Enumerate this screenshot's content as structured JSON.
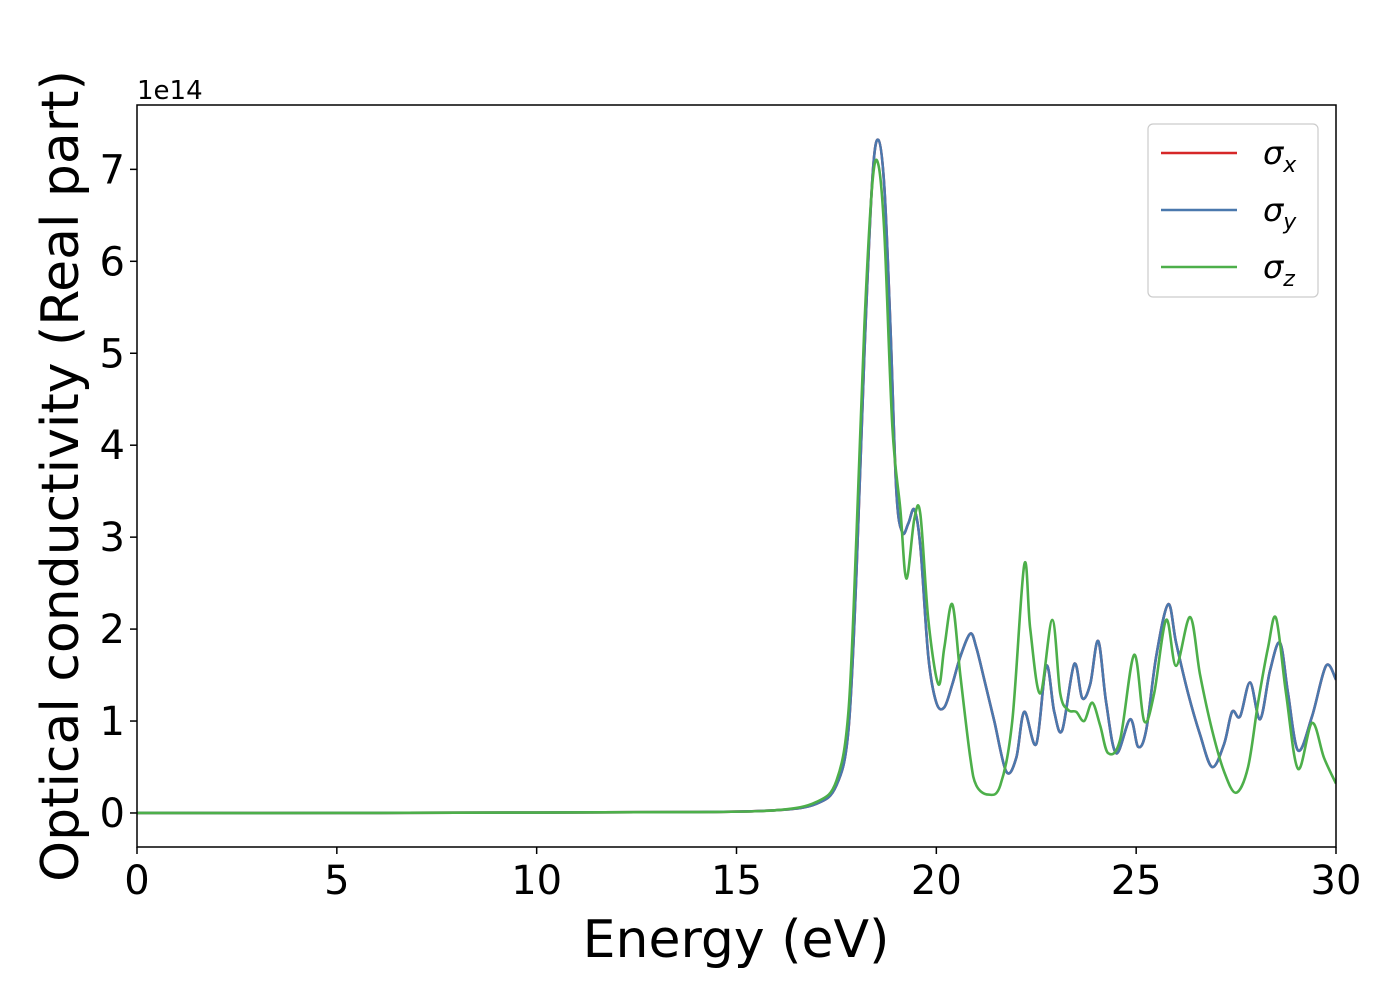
{
  "chart_data": {
    "type": "line",
    "xlabel": "Energy (eV)",
    "ylabel": "Optical conductivity (Real part)",
    "offset_text": "1e14",
    "xlim": [
      0,
      30
    ],
    "ylim": [
      -0.37,
      7.7
    ],
    "y_scale": 100000000000000.0,
    "x_ticks": [
      0,
      5,
      10,
      15,
      20,
      25,
      30
    ],
    "y_ticks": [
      0,
      1,
      2,
      3,
      4,
      5,
      6,
      7
    ],
    "grid": false,
    "legend_position": "top-right",
    "series": [
      {
        "name": "σx",
        "base": "σ",
        "sub": "x",
        "color": "#d62728",
        "x": [
          0,
          5,
          10,
          14,
          16,
          17,
          17.5,
          17.8,
          18.0,
          18.2,
          18.4,
          18.55,
          18.7,
          18.85,
          19.0,
          19.15,
          19.3,
          19.45,
          19.6,
          19.8,
          20.0,
          20.2,
          20.4,
          20.6,
          20.85,
          21.0,
          21.2,
          21.45,
          21.75,
          22.0,
          22.2,
          22.5,
          22.75,
          22.95,
          23.15,
          23.45,
          23.65,
          23.85,
          24.05,
          24.25,
          24.5,
          24.85,
          25.05,
          25.25,
          25.5,
          25.8,
          26.0,
          26.3,
          26.6,
          26.9,
          27.2,
          27.4,
          27.6,
          27.85,
          28.1,
          28.35,
          28.6,
          28.8,
          29.05,
          29.4,
          29.75,
          30.0
        ],
        "y": [
          0,
          0,
          0.005,
          0.01,
          0.03,
          0.1,
          0.3,
          0.9,
          2.6,
          5.0,
          6.9,
          7.32,
          6.8,
          5.3,
          3.5,
          3.05,
          3.15,
          3.3,
          2.9,
          1.7,
          1.2,
          1.15,
          1.4,
          1.7,
          1.95,
          1.8,
          1.45,
          1.0,
          0.45,
          0.6,
          1.1,
          0.75,
          1.6,
          1.1,
          0.9,
          1.62,
          1.25,
          1.4,
          1.87,
          1.2,
          0.65,
          1.02,
          0.72,
          0.9,
          1.7,
          2.27,
          1.85,
          1.3,
          0.85,
          0.5,
          0.75,
          1.1,
          1.05,
          1.42,
          1.02,
          1.55,
          1.85,
          1.3,
          0.68,
          1.05,
          1.6,
          1.45
        ]
      },
      {
        "name": "σy",
        "base": "σ",
        "sub": "y",
        "color": "#4a78ad",
        "x": [
          0,
          5,
          10,
          14,
          16,
          17,
          17.5,
          17.8,
          18.0,
          18.2,
          18.4,
          18.55,
          18.7,
          18.85,
          19.0,
          19.15,
          19.3,
          19.45,
          19.6,
          19.8,
          20.0,
          20.2,
          20.4,
          20.6,
          20.85,
          21.0,
          21.2,
          21.45,
          21.75,
          22.0,
          22.2,
          22.5,
          22.75,
          22.95,
          23.15,
          23.45,
          23.65,
          23.85,
          24.05,
          24.25,
          24.5,
          24.85,
          25.05,
          25.25,
          25.5,
          25.8,
          26.0,
          26.3,
          26.6,
          26.9,
          27.2,
          27.4,
          27.6,
          27.85,
          28.1,
          28.35,
          28.6,
          28.8,
          29.05,
          29.4,
          29.75,
          30.0
        ],
        "y": [
          0,
          0,
          0.005,
          0.01,
          0.03,
          0.1,
          0.3,
          0.9,
          2.6,
          5.0,
          6.9,
          7.32,
          6.8,
          5.3,
          3.5,
          3.05,
          3.15,
          3.3,
          2.9,
          1.7,
          1.2,
          1.15,
          1.4,
          1.7,
          1.95,
          1.8,
          1.45,
          1.0,
          0.45,
          0.6,
          1.1,
          0.75,
          1.6,
          1.1,
          0.9,
          1.62,
          1.25,
          1.4,
          1.87,
          1.2,
          0.65,
          1.02,
          0.72,
          0.9,
          1.7,
          2.27,
          1.85,
          1.3,
          0.85,
          0.5,
          0.75,
          1.1,
          1.05,
          1.42,
          1.02,
          1.55,
          1.85,
          1.3,
          0.68,
          1.05,
          1.6,
          1.45
        ]
      },
      {
        "name": "σz",
        "base": "σ",
        "sub": "z",
        "color": "#4daf4a",
        "x": [
          0,
          5,
          10,
          14,
          16,
          17,
          17.5,
          17.8,
          18.0,
          18.2,
          18.4,
          18.55,
          18.7,
          18.9,
          19.1,
          19.25,
          19.45,
          19.6,
          19.8,
          20.05,
          20.2,
          20.4,
          20.6,
          20.85,
          21.0,
          21.3,
          21.6,
          21.9,
          22.2,
          22.35,
          22.6,
          22.9,
          23.1,
          23.3,
          23.5,
          23.7,
          23.9,
          24.1,
          24.3,
          24.6,
          24.95,
          25.2,
          25.45,
          25.75,
          26.0,
          26.35,
          26.6,
          26.9,
          27.2,
          27.5,
          27.8,
          28.05,
          28.3,
          28.5,
          28.75,
          29.05,
          29.4,
          29.7,
          30.0
        ],
        "y": [
          0,
          0,
          0.005,
          0.01,
          0.03,
          0.12,
          0.35,
          1.1,
          3.0,
          5.3,
          6.85,
          7.05,
          6.3,
          4.2,
          3.3,
          2.55,
          3.2,
          3.25,
          2.1,
          1.4,
          1.8,
          2.27,
          1.5,
          0.6,
          0.3,
          0.2,
          0.3,
          1.0,
          2.7,
          2.0,
          1.3,
          2.1,
          1.3,
          1.12,
          1.1,
          1.0,
          1.2,
          0.95,
          0.65,
          0.8,
          1.72,
          1.0,
          1.3,
          2.1,
          1.6,
          2.13,
          1.5,
          0.9,
          0.45,
          0.22,
          0.5,
          1.2,
          1.8,
          2.12,
          1.3,
          0.48,
          0.98,
          0.6,
          0.32
        ]
      }
    ]
  }
}
